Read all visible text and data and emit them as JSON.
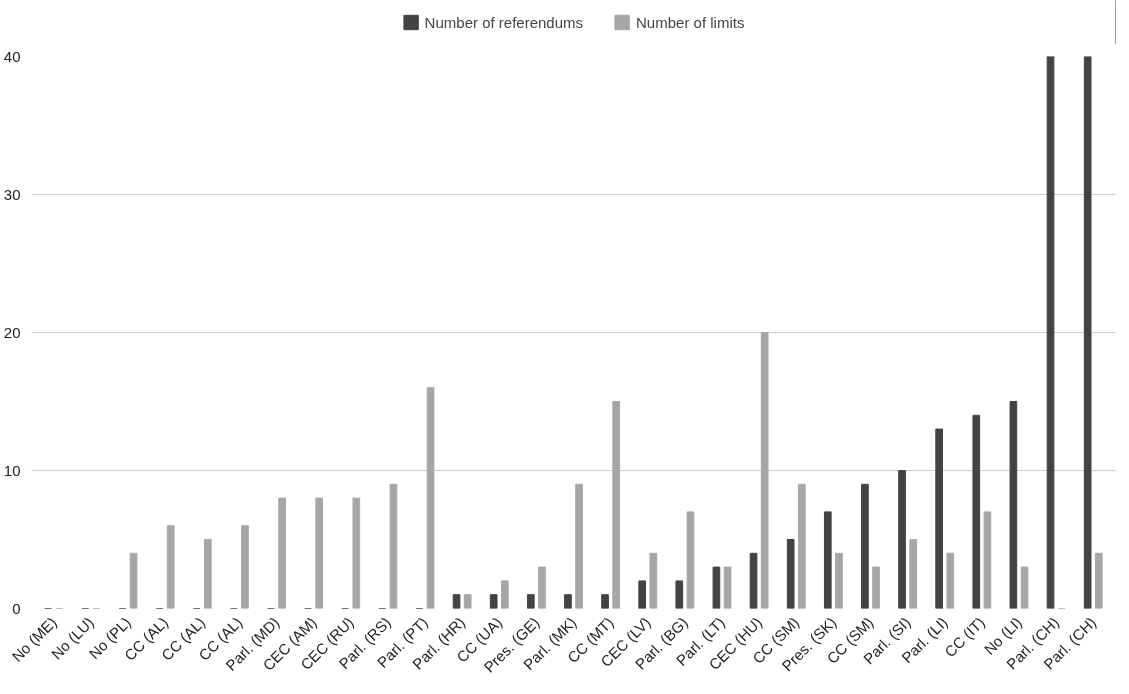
{
  "chart_data": {
    "type": "bar",
    "categories": [
      "No (ME)",
      "No (LU)",
      "No (PL)",
      "CC (AL)",
      "CC (AL)",
      "CC (AL)",
      "Parl. (MD)",
      "CEC (AM)",
      "CEC (RU)",
      "Parl. (RS)",
      "Parl. (PT)",
      "Parl. (HR)",
      "CC (UA)",
      "Pres. (GE)",
      "Parl. (MK)",
      "CC (MT)",
      "CEC (LV)",
      "Parl. (BG)",
      "Parl. (LT)",
      "CEC (HU)",
      "CC (SM)",
      "Pres. (SK)",
      "CC (SM)",
      "Parl. (SI)",
      "Parl. (LI)",
      "CC (IT)",
      "No (LI)",
      "Parl. (CH)",
      "Parl. (CH)"
    ],
    "series": [
      {
        "name": "Number of referendums",
        "color": "#434343",
        "values": [
          0,
          0,
          0,
          0,
          0,
          0,
          0,
          0,
          0,
          0,
          0,
          1,
          1,
          1,
          1,
          1,
          2,
          2,
          3,
          4,
          5,
          7,
          9,
          10,
          13,
          14,
          15,
          40,
          40
        ]
      },
      {
        "name": "Number of limits",
        "color": "#a6a6a6",
        "values": [
          0,
          0,
          4,
          6,
          5,
          6,
          8,
          8,
          8,
          9,
          16,
          1,
          2,
          3,
          9,
          15,
          4,
          7,
          3,
          20,
          9,
          4,
          3,
          5,
          4,
          7,
          3,
          0,
          4
        ]
      }
    ],
    "ylim": [
      0,
      40
    ],
    "yticks": [
      0,
      10,
      20,
      30,
      40
    ],
    "grid": "y",
    "legend": "top"
  }
}
